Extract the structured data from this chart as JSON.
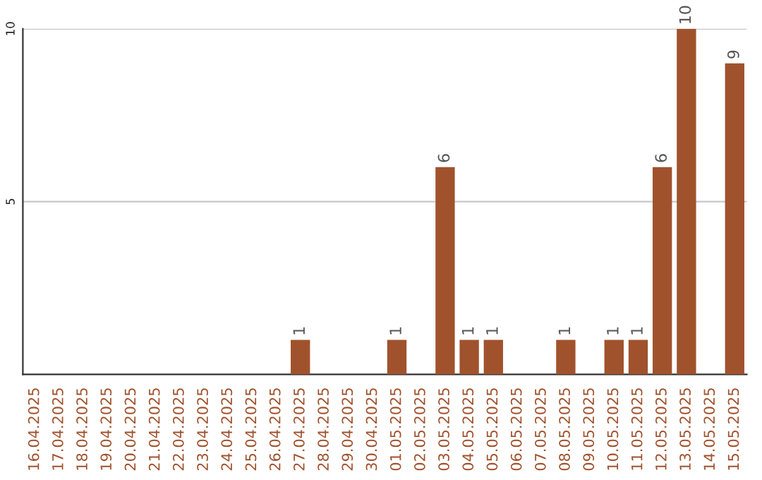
{
  "chart_data": {
    "type": "bar",
    "categories": [
      "16.04.2025",
      "17.04.2025",
      "18.04.2025",
      "19.04.2025",
      "20.04.2025",
      "21.04.2025",
      "22.04.2025",
      "23.04.2025",
      "24.04.2025",
      "25.04.2025",
      "26.04.2025",
      "27.04.2025",
      "28.04.2025",
      "29.04.2025",
      "30.04.2025",
      "01.05.2025",
      "02.05.2025",
      "03.05.2025",
      "04.05.2025",
      "05.05.2025",
      "06.05.2025",
      "07.05.2025",
      "08.05.2025",
      "09.05.2025",
      "10.05.2025",
      "11.05.2025",
      "12.05.2025",
      "13.05.2025",
      "14.05.2025",
      "15.05.2025"
    ],
    "values": [
      0,
      0,
      0,
      0,
      0,
      0,
      0,
      0,
      0,
      0,
      0,
      1,
      0,
      0,
      0,
      1,
      0,
      6,
      1,
      1,
      0,
      0,
      1,
      0,
      1,
      1,
      6,
      10,
      0,
      9
    ],
    "value_labels": [
      null,
      null,
      null,
      null,
      null,
      null,
      null,
      null,
      null,
      null,
      null,
      "1",
      null,
      null,
      null,
      "1",
      null,
      "6",
      "1",
      "1",
      null,
      null,
      "1",
      null,
      "1",
      "1",
      "6",
      "10",
      null,
      "9"
    ],
    "color": "#a0522d",
    "ylim": [
      0,
      10
    ],
    "yticks": [
      5,
      10
    ],
    "grid": "y"
  }
}
